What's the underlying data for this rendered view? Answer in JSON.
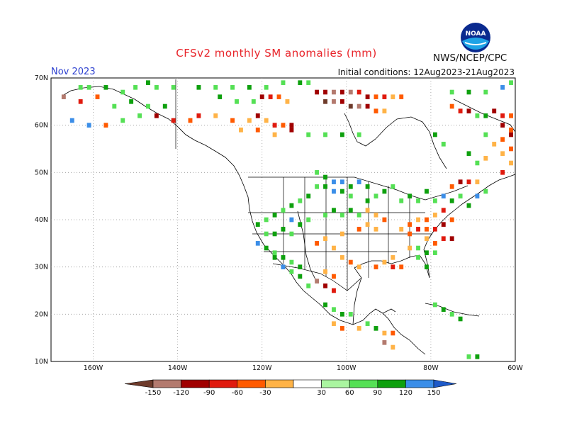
{
  "header": {
    "title": "CFSv2 monthly SM anomalies (mm)",
    "month": "Nov 2023",
    "initial_conditions": "Initial conditions: 12Aug2023-21Aug2023",
    "agency": "NWS/NCEP/CPC",
    "logo_text": "NOAA"
  },
  "map": {
    "lon_range": [
      -170,
      -60
    ],
    "lat_range": [
      10,
      70
    ],
    "lat_ticks": [
      "10N",
      "20N",
      "30N",
      "40N",
      "50N",
      "60N",
      "70N"
    ],
    "lon_ticks": [
      "160W",
      "140W",
      "120W",
      "100W",
      "80W",
      "60W"
    ],
    "grid": true
  },
  "colorbar": {
    "labels": [
      "-150",
      "-120",
      "-90",
      "-60",
      "-30",
      "30",
      "60",
      "90",
      "120",
      "150"
    ],
    "colors": [
      "#6e3b2b",
      "#b37a6e",
      "#a00000",
      "#e01a0e",
      "#ff5a00",
      "#ffb347",
      "#ffffff",
      "#aaf5a0",
      "#55e055",
      "#0ea00e",
      "#3b8ee8",
      "#1e5ac8"
    ]
  }
}
